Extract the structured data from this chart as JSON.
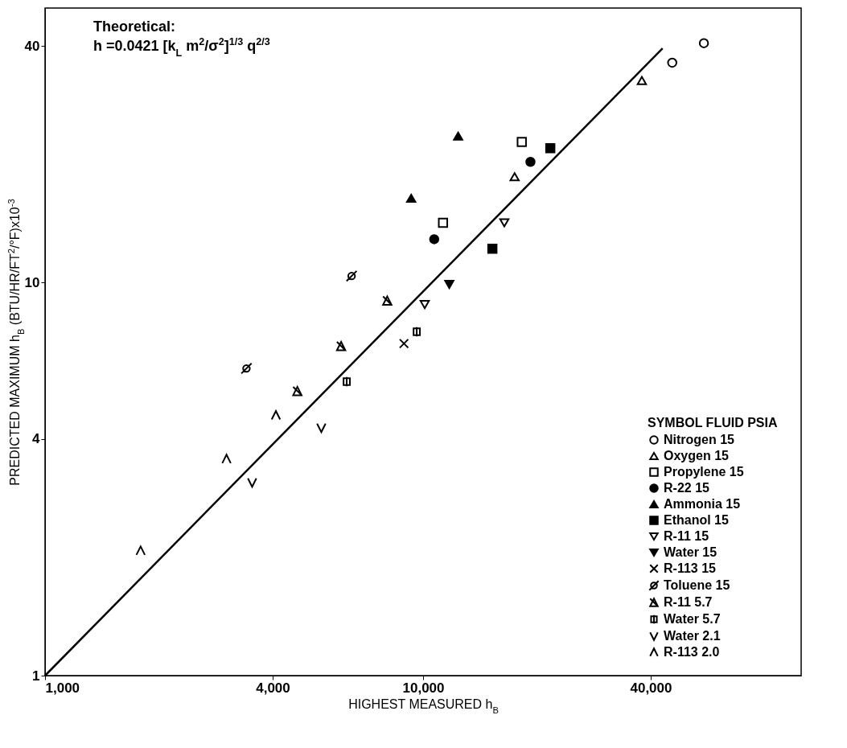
{
  "chart_data": {
    "type": "scatter",
    "xlabel": "HIGHEST MEASURED h$_{B}$",
    "ylabel": "PREDICTED MAXIMUM h$_{B}$ (BTU/HR/FT$^{2}$/°F)x10$^{-3}$",
    "legend_title": "SYMBOL  FLUID  PSIA",
    "annotations": [
      "Theoretical:",
      "h =0.0421 [k$_{L}$ m$^{2}$/σ$^{2}$]$^{1/3}$ q$^{2/3}$"
    ],
    "log": "xy",
    "xlim": [
      1000,
      100000
    ],
    "ylim": [
      1,
      50
    ],
    "xticks": [
      {
        "value": 1000,
        "label": "1,000"
      },
      {
        "value": 4000,
        "label": "4,000"
      },
      {
        "value": 10000,
        "label": "10,000"
      },
      {
        "value": 40000,
        "label": "40,000"
      }
    ],
    "yticks": [
      1,
      4,
      10,
      40
    ],
    "grid": false,
    "legend": "bottom right",
    "series": [
      {
        "name": "Nitrogen 15",
        "color": "#000000",
        "x": [
          55300,
          45600
        ],
        "values": [
          40.7,
          36.3
        ]
      },
      {
        "name": "Oxygen 15",
        "color": "#000000",
        "x": [
          37900,
          17460
        ],
        "values": [
          32.7,
          18.6
        ]
      },
      {
        "name": "Propylene 15",
        "color": "#000000",
        "x": [
          18240,
          11290
        ],
        "values": [
          22.8,
          14.2
        ]
      },
      {
        "name": "R-22 15",
        "color": "#000000",
        "x": [
          19230,
          10700
        ],
        "values": [
          20.3,
          12.9
        ]
      },
      {
        "name": "Ammonia 15",
        "color": "#000000",
        "x": [
          12380,
          9300
        ],
        "values": [
          23.6,
          16.4
        ]
      },
      {
        "name": "Ethanol 15",
        "color": "#000000",
        "x": [
          21700,
          15250
        ],
        "values": [
          22.0,
          12.2
        ]
      },
      {
        "name": "R-11 15",
        "color": "#000000",
        "x": [
          16400,
          10100
        ],
        "values": [
          14.2,
          8.8
        ]
      },
      {
        "name": "Water 15",
        "color": "#000000",
        "x": [
          11730
        ],
        "values": [
          9.9
        ]
      },
      {
        "name": "R-113 15",
        "color": "#000000",
        "x": [
          8900
        ],
        "values": [
          7.0
        ]
      },
      {
        "name": "Toluene 15",
        "color": "#000000",
        "x": [
          6470,
          3410
        ],
        "values": [
          10.4,
          6.05
        ]
      },
      {
        "name": "R-11 5.7",
        "color": "#000000",
        "x": [
          8040,
          6070,
          4650
        ],
        "values": [
          9.0,
          6.9,
          5.3
        ]
      },
      {
        "name": "Water 5.7",
        "color": "#000000",
        "x": [
          9620,
          6280
        ],
        "values": [
          7.5,
          5.6
        ]
      },
      {
        "name": "Water 2.1",
        "color": "#000000",
        "x": [
          5380,
          3530
        ],
        "values": [
          4.27,
          3.1
        ]
      },
      {
        "name": "R-113 2.0",
        "color": "#000000",
        "x": [
          4080,
          3020,
          1790
        ],
        "values": [
          4.6,
          3.56,
          2.08
        ]
      },
      {
        "type": "line",
        "color": "#000000",
        "line_style": "solid",
        "x": [
          1000,
          43000
        ],
        "values": [
          1,
          39.5
        ]
      }
    ]
  }
}
